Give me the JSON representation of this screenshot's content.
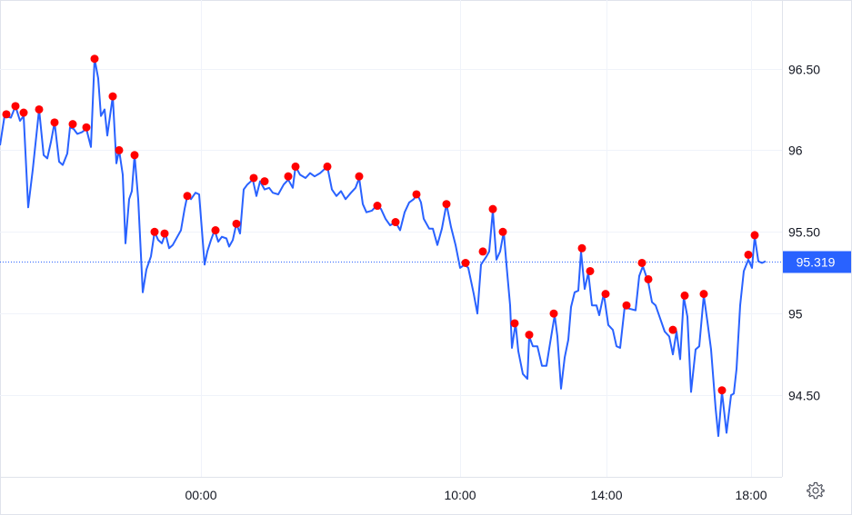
{
  "chart_data": {
    "type": "line",
    "x_ticks": [
      "00:00",
      "10:00",
      "14:00",
      "18:00"
    ],
    "y_ticks": [
      "96.50",
      "96",
      "95.50",
      "95",
      "94.50"
    ],
    "ylim": [
      94.0,
      96.92
    ],
    "grid": true,
    "line_color": "#2962ff",
    "marker_color": "#ff0000",
    "last_price": {
      "label": "95.319",
      "value": 95.319,
      "color": "#2962ff"
    },
    "series": [
      {
        "points": [
          [
            0,
            96.03
          ],
          [
            5,
            96.21
          ],
          [
            12,
            96.2
          ],
          [
            17,
            96.27
          ],
          [
            22,
            96.18
          ],
          [
            26,
            96.21
          ],
          [
            31,
            95.65
          ],
          [
            36,
            95.88
          ],
          [
            43,
            96.25
          ],
          [
            48,
            95.97
          ],
          [
            52,
            95.95
          ],
          [
            56,
            96.05
          ],
          [
            60,
            96.17
          ],
          [
            65,
            95.93
          ],
          [
            69,
            95.91
          ],
          [
            74,
            95.98
          ],
          [
            77,
            96.14
          ],
          [
            81,
            96.13
          ],
          [
            85,
            96.1
          ],
          [
            90,
            96.11
          ],
          [
            95,
            96.13
          ],
          [
            100,
            96.02
          ],
          [
            104,
            96.56
          ],
          [
            108,
            96.44
          ],
          [
            111,
            96.21
          ],
          [
            115,
            96.25
          ],
          [
            118,
            96.09
          ],
          [
            124,
            96.33
          ],
          [
            128,
            95.92
          ],
          [
            131,
            96.0
          ],
          [
            135,
            95.85
          ],
          [
            138,
            95.43
          ],
          [
            142,
            95.7
          ],
          [
            145,
            95.75
          ],
          [
            148,
            95.97
          ],
          [
            152,
            95.7
          ],
          [
            157,
            95.13
          ],
          [
            161,
            95.27
          ],
          [
            166,
            95.35
          ],
          [
            170,
            95.5
          ],
          [
            174,
            95.45
          ],
          [
            178,
            95.43
          ],
          [
            182,
            95.49
          ],
          [
            186,
            95.4
          ],
          [
            190,
            95.42
          ],
          [
            195,
            95.47
          ],
          [
            199,
            95.51
          ],
          [
            203,
            95.64
          ],
          [
            206,
            95.72
          ],
          [
            210,
            95.7
          ],
          [
            215,
            95.74
          ],
          [
            219,
            95.73
          ],
          [
            225,
            95.3
          ],
          [
            228,
            95.38
          ],
          [
            232,
            95.45
          ],
          [
            236,
            95.51
          ],
          [
            240,
            95.44
          ],
          [
            244,
            95.47
          ],
          [
            249,
            95.46
          ],
          [
            252,
            95.41
          ],
          [
            256,
            95.45
          ],
          [
            260,
            95.55
          ],
          [
            264,
            95.49
          ],
          [
            268,
            95.76
          ],
          [
            272,
            95.79
          ],
          [
            278,
            95.82
          ],
          [
            282,
            95.72
          ],
          [
            286,
            95.81
          ],
          [
            291,
            95.76
          ],
          [
            296,
            95.77
          ],
          [
            300,
            95.74
          ],
          [
            306,
            95.73
          ],
          [
            312,
            95.79
          ],
          [
            317,
            95.82
          ],
          [
            322,
            95.77
          ],
          [
            325,
            95.9
          ],
          [
            330,
            95.85
          ],
          [
            336,
            95.83
          ],
          [
            341,
            95.86
          ],
          [
            346,
            95.84
          ],
          [
            352,
            95.86
          ],
          [
            360,
            95.9
          ],
          [
            365,
            95.76
          ],
          [
            370,
            95.72
          ],
          [
            375,
            95.75
          ],
          [
            380,
            95.7
          ],
          [
            386,
            95.74
          ],
          [
            391,
            95.77
          ],
          [
            395,
            95.83
          ],
          [
            399,
            95.67
          ],
          [
            403,
            95.62
          ],
          [
            409,
            95.63
          ],
          [
            414,
            95.66
          ],
          [
            419,
            95.64
          ],
          [
            424,
            95.58
          ],
          [
            429,
            95.54
          ],
          [
            435,
            95.56
          ],
          [
            440,
            95.51
          ],
          [
            445,
            95.62
          ],
          [
            450,
            95.68
          ],
          [
            455,
            95.7
          ],
          [
            459,
            95.73
          ],
          [
            463,
            95.68
          ],
          [
            466,
            95.58
          ],
          [
            472,
            95.52
          ],
          [
            476,
            95.52
          ],
          [
            481,
            95.42
          ],
          [
            486,
            95.52
          ],
          [
            491,
            95.67
          ],
          [
            496,
            95.53
          ],
          [
            501,
            95.42
          ],
          [
            506,
            95.28
          ],
          [
            511,
            95.3
          ],
          [
            515,
            95.28
          ],
          [
            521,
            95.12
          ],
          [
            525,
            95.0
          ],
          [
            529,
            95.3
          ],
          [
            535,
            95.35
          ],
          [
            538,
            95.38
          ],
          [
            542,
            95.63
          ],
          [
            546,
            95.33
          ],
          [
            550,
            95.38
          ],
          [
            554,
            95.5
          ],
          [
            557,
            95.3
          ],
          [
            561,
            95.05
          ],
          [
            563,
            94.79
          ],
          [
            567,
            94.94
          ],
          [
            570,
            94.77
          ],
          [
            575,
            94.63
          ],
          [
            580,
            94.6
          ],
          [
            582,
            94.86
          ],
          [
            586,
            94.8
          ],
          [
            591,
            94.8
          ],
          [
            596,
            94.68
          ],
          [
            601,
            94.68
          ],
          [
            605,
            94.82
          ],
          [
            610,
            94.99
          ],
          [
            613,
            94.86
          ],
          [
            617,
            94.54
          ],
          [
            621,
            94.73
          ],
          [
            625,
            94.84
          ],
          [
            628,
            95.04
          ],
          [
            632,
            95.13
          ],
          [
            636,
            95.14
          ],
          [
            639,
            95.38
          ],
          [
            643,
            95.15
          ],
          [
            647,
            95.25
          ],
          [
            651,
            95.05
          ],
          [
            656,
            95.05
          ],
          [
            659,
            94.99
          ],
          [
            664,
            95.12
          ],
          [
            669,
            94.93
          ],
          [
            674,
            94.9
          ],
          [
            678,
            94.8
          ],
          [
            682,
            94.79
          ],
          [
            687,
            95.04
          ],
          [
            692,
            95.03
          ],
          [
            699,
            95.02
          ],
          [
            703,
            95.23
          ],
          [
            707,
            95.29
          ],
          [
            713,
            95.19
          ],
          [
            717,
            95.07
          ],
          [
            721,
            95.05
          ],
          [
            726,
            94.97
          ],
          [
            731,
            94.89
          ],
          [
            736,
            94.86
          ],
          [
            740,
            94.75
          ],
          [
            744,
            94.89
          ],
          [
            748,
            94.72
          ],
          [
            752,
            95.1
          ],
          [
            756,
            94.98
          ],
          [
            760,
            94.52
          ],
          [
            765,
            94.78
          ],
          [
            769,
            94.8
          ],
          [
            774,
            95.11
          ],
          [
            778,
            94.95
          ],
          [
            782,
            94.78
          ],
          [
            787,
            94.42
          ],
          [
            790,
            94.25
          ],
          [
            794,
            94.52
          ],
          [
            799,
            94.27
          ],
          [
            804,
            94.5
          ],
          [
            807,
            94.51
          ],
          [
            810,
            94.66
          ],
          [
            814,
            95.05
          ],
          [
            818,
            95.26
          ],
          [
            823,
            95.33
          ],
          [
            827,
            95.28
          ],
          [
            830,
            95.47
          ],
          [
            834,
            95.32
          ],
          [
            838,
            95.31
          ],
          [
            842,
            95.32
          ]
        ]
      }
    ],
    "markers": [
      [
        7,
        96.22
      ],
      [
        17,
        96.27
      ],
      [
        26,
        96.23
      ],
      [
        43,
        96.25
      ],
      [
        60,
        96.17
      ],
      [
        80,
        96.16
      ],
      [
        95,
        96.14
      ],
      [
        104,
        96.56
      ],
      [
        124,
        96.33
      ],
      [
        131,
        96.0
      ],
      [
        148,
        95.97
      ],
      [
        170,
        95.5
      ],
      [
        181,
        95.49
      ],
      [
        206,
        95.72
      ],
      [
        237,
        95.51
      ],
      [
        260,
        95.55
      ],
      [
        279,
        95.83
      ],
      [
        291,
        95.81
      ],
      [
        317,
        95.84
      ],
      [
        325,
        95.9
      ],
      [
        360,
        95.9
      ],
      [
        395,
        95.84
      ],
      [
        415,
        95.66
      ],
      [
        435,
        95.56
      ],
      [
        458,
        95.73
      ],
      [
        491,
        95.67
      ],
      [
        512,
        95.31
      ],
      [
        531,
        95.38
      ],
      [
        542,
        95.64
      ],
      [
        553,
        95.5
      ],
      [
        566,
        94.94
      ],
      [
        582,
        94.87
      ],
      [
        609,
        95.0
      ],
      [
        640,
        95.4
      ],
      [
        649,
        95.26
      ],
      [
        666,
        95.12
      ],
      [
        689,
        95.05
      ],
      [
        706,
        95.31
      ],
      [
        713,
        95.21
      ],
      [
        740,
        94.9
      ],
      [
        753,
        95.11
      ],
      [
        774,
        95.12
      ],
      [
        794,
        94.53
      ],
      [
        823,
        95.36
      ],
      [
        830,
        95.48
      ]
    ]
  }
}
